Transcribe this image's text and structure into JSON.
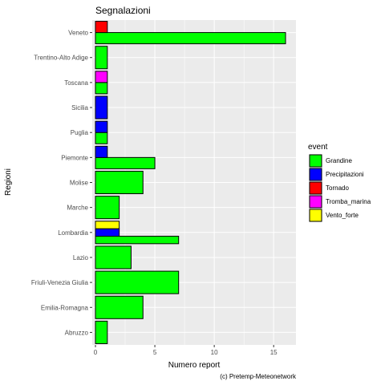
{
  "chart_data": {
    "type": "bar",
    "orientation": "horizontal",
    "position": "dodge",
    "title": "Segnalazioni",
    "xlabel": "Numero report",
    "ylabel": "Regioni",
    "caption": "(c) Pretemp-Meteonetwork",
    "xlim": [
      0,
      16.8
    ],
    "x_ticks": [
      0,
      5,
      10,
      15
    ],
    "grid": true,
    "legend": {
      "title": "event",
      "placement": "right"
    },
    "categories": [
      "Abruzzo",
      "Emilia-Romagna",
      "Friuli-Venezia Giulia",
      "Lazio",
      "Lombardia",
      "Marche",
      "Molise",
      "Piemonte",
      "Puglia",
      "Sicilia",
      "Toscana",
      "Trentino-Alto Adige",
      "Veneto"
    ],
    "series": [
      {
        "name": "Grandine",
        "color": "#00FF00",
        "values": [
          1,
          4,
          7,
          3,
          7,
          2,
          4,
          5,
          1,
          null,
          1,
          1,
          16
        ]
      },
      {
        "name": "Precipitazioni",
        "color": "#0000FF",
        "values": [
          null,
          null,
          null,
          null,
          2,
          null,
          null,
          1,
          1,
          1,
          null,
          null,
          null
        ]
      },
      {
        "name": "Tornado",
        "color": "#FF0000",
        "values": [
          null,
          null,
          null,
          null,
          null,
          null,
          null,
          null,
          null,
          null,
          null,
          null,
          1
        ]
      },
      {
        "name": "Tromba_marina",
        "color": "#FF00FF",
        "values": [
          null,
          null,
          null,
          null,
          null,
          null,
          null,
          null,
          null,
          null,
          1,
          null,
          null
        ]
      },
      {
        "name": "Vento_forte",
        "color": "#FFFF00",
        "values": [
          null,
          null,
          null,
          null,
          2,
          null,
          null,
          null,
          null,
          null,
          null,
          null,
          null
        ]
      }
    ]
  }
}
